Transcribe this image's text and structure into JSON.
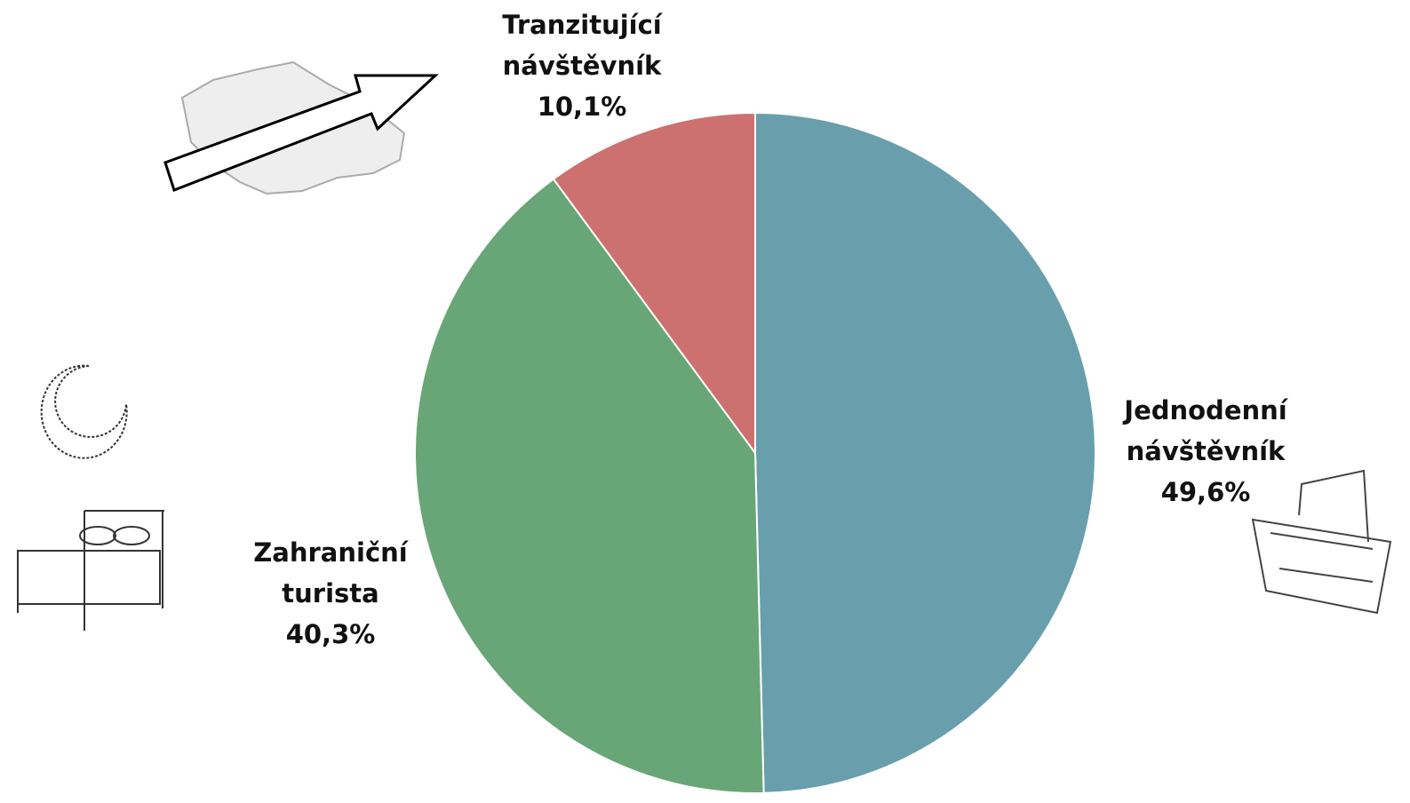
{
  "chart_data": {
    "type": "pie",
    "categories": [
      "Jednodenní návštěvník",
      "Zahraniční turista",
      "Tranzitující návštěvník"
    ],
    "values": [
      49.6,
      40.3,
      10.1
    ],
    "value_labels": [
      "49,6%",
      "40,3%",
      "10,1%"
    ],
    "colors": [
      "#699fac",
      "#69a677",
      "#cc716f"
    ]
  }
}
